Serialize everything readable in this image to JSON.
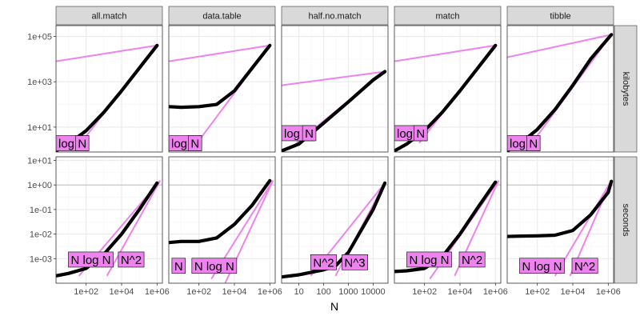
{
  "chart_data": {
    "type": "line",
    "facet_columns": [
      "all.match",
      "data.table",
      "half.no.match",
      "match",
      "tibble"
    ],
    "facet_rows": [
      "kilobytes",
      "seconds"
    ],
    "xlabel": "N",
    "x_scale": "log10",
    "y_scale": "log10",
    "x_ticks": {
      "all.match": {
        "values": [
          100,
          10000,
          1000000
        ],
        "labels": [
          "1e+02",
          "1e+04",
          "1e+06"
        ]
      },
      "data.table": {
        "values": [
          100,
          10000,
          1000000
        ],
        "labels": [
          "1e+02",
          "1e+04",
          "1e+06"
        ]
      },
      "half.no.match": {
        "values": [
          10,
          100,
          1000,
          10000
        ],
        "labels": [
          "10",
          "100",
          "1000",
          "10000"
        ]
      },
      "match": {
        "values": [
          100,
          10000,
          1000000
        ],
        "labels": [
          "1e+02",
          "1e+04",
          "1e+06"
        ]
      },
      "tibble": {
        "values": [
          100,
          10000,
          1000000
        ],
        "labels": [
          "1e+02",
          "1e+04",
          "1e+06"
        ]
      }
    },
    "x_ranges": {
      "all.match": [
        2,
        2000000
      ],
      "data.table": [
        2,
        2000000
      ],
      "half.no.match": [
        2,
        40000
      ],
      "match": [
        2,
        2000000
      ],
      "tibble": [
        2,
        2000000
      ]
    },
    "y_ticks": {
      "kilobytes": {
        "values": [
          10,
          1000,
          100000
        ],
        "labels": [
          "1e+01",
          "1e+03",
          "1e+05"
        ]
      },
      "seconds": {
        "values": [
          0.001,
          0.01,
          0.1,
          1,
          10
        ],
        "labels": [
          "1e-03",
          "1e-02",
          "1e-01",
          "1e+00",
          "1e+01"
        ]
      }
    },
    "y_ranges": {
      "kilobytes": [
        0.8,
        300000
      ],
      "seconds": [
        0.0001,
        14
      ]
    },
    "reference_line": {
      "row": "seconds",
      "y": 1
    },
    "panels": [
      {
        "col": "all.match",
        "row": "kilobytes",
        "measured": [
          [
            2,
            0.9
          ],
          [
            10,
            1.8
          ],
          [
            100,
            7
          ],
          [
            1000,
            45
          ],
          [
            10000,
            400
          ],
          [
            100000,
            4000
          ],
          [
            1000000,
            40000
          ]
        ],
        "ref_lines": [
          {
            "label": "log N",
            "points": [
              [
                2,
                8000
              ],
              [
                1000000,
                40000
              ]
            ]
          },
          {
            "label": "N",
            "points": [
              [
                50,
                2
              ],
              [
                1000000,
                40000
              ]
            ]
          }
        ],
        "labels": [
          {
            "text": "log N",
            "x": 2,
            "y": 0.9
          },
          {
            "text": "N",
            "x": 25,
            "y": 0.9
          }
        ]
      },
      {
        "col": "data.table",
        "row": "kilobytes",
        "measured": [
          [
            2,
            80
          ],
          [
            10,
            75
          ],
          [
            100,
            80
          ],
          [
            1000,
            100
          ],
          [
            10000,
            400
          ],
          [
            100000,
            4000
          ],
          [
            1000000,
            40000
          ]
        ],
        "ref_lines": [
          {
            "label": "log N",
            "points": [
              [
                2,
                8000
              ],
              [
                1000000,
                40000
              ]
            ]
          },
          {
            "label": "N",
            "points": [
              [
                80,
                2
              ],
              [
                1000000,
                40000
              ]
            ]
          }
        ],
        "labels": [
          {
            "text": "log N",
            "x": 2,
            "y": 0.9
          },
          {
            "text": "N",
            "x": 25,
            "y": 0.9
          }
        ]
      },
      {
        "col": "half.no.match",
        "row": "kilobytes",
        "measured": [
          [
            2,
            0.9
          ],
          [
            10,
            1.8
          ],
          [
            100,
            15
          ],
          [
            1000,
            130
          ],
          [
            10000,
            1200
          ],
          [
            30000,
            2800
          ]
        ],
        "ref_lines": [
          {
            "label": "log N",
            "points": [
              [
                2,
                700
              ],
              [
                30000,
                2800
              ]
            ]
          },
          {
            "label": "N",
            "points": [
              [
                8,
                2
              ],
              [
                30000,
                2800
              ]
            ]
          }
        ],
        "labels": [
          {
            "text": "log N",
            "x": 2,
            "y": 2.5
          },
          {
            "text": "N",
            "x": 14,
            "y": 2.5
          }
        ]
      },
      {
        "col": "match",
        "row": "kilobytes",
        "measured": [
          [
            2,
            0.9
          ],
          [
            10,
            1.8
          ],
          [
            100,
            7
          ],
          [
            1000,
            45
          ],
          [
            10000,
            400
          ],
          [
            100000,
            4000
          ],
          [
            1000000,
            40000
          ]
        ],
        "ref_lines": [
          {
            "label": "log N",
            "points": [
              [
                2,
                8000
              ],
              [
                1000000,
                40000
              ]
            ]
          },
          {
            "label": "N",
            "points": [
              [
                50,
                2
              ],
              [
                1000000,
                40000
              ]
            ]
          }
        ],
        "labels": [
          {
            "text": "log N",
            "x": 2,
            "y": 2.5
          },
          {
            "text": "N",
            "x": 25,
            "y": 2.5
          }
        ]
      },
      {
        "col": "tibble",
        "row": "kilobytes",
        "measured": [
          [
            2,
            0.9
          ],
          [
            10,
            1.8
          ],
          [
            100,
            8
          ],
          [
            1000,
            60
          ],
          [
            10000,
            700
          ],
          [
            100000,
            10000
          ],
          [
            1500000,
            120000
          ]
        ],
        "ref_lines": [
          {
            "label": "log N",
            "points": [
              [
                2,
                12000
              ],
              [
                1500000,
                120000
              ]
            ]
          },
          {
            "label": "N",
            "points": [
              [
                50,
                2
              ],
              [
                1500000,
                120000
              ]
            ]
          }
        ],
        "labels": [
          {
            "text": "log N",
            "x": 2,
            "y": 0.9
          },
          {
            "text": "N",
            "x": 25,
            "y": 0.9
          }
        ]
      },
      {
        "col": "all.match",
        "row": "seconds",
        "measured": [
          [
            2,
            0.0002
          ],
          [
            10,
            0.00025
          ],
          [
            100,
            0.0004
          ],
          [
            1000,
            0.0015
          ],
          [
            10000,
            0.01
          ],
          [
            100000,
            0.1
          ],
          [
            1000000,
            1.2
          ]
        ],
        "ref_lines": [
          {
            "label": "N log N",
            "points": [
              [
                40,
                0.0002
              ],
              [
                1500000,
                1.5
              ]
            ]
          },
          {
            "label": "N^2",
            "points": [
              [
                1500,
                0.0002
              ],
              [
                1500000,
                1.5
              ]
            ]
          }
        ],
        "labels": [
          {
            "text": "N log N",
            "x": 10,
            "y": 0.00045
          },
          {
            "text": "N^2",
            "x": 6500,
            "y": 0.00045
          }
        ]
      },
      {
        "col": "data.table",
        "row": "seconds",
        "measured": [
          [
            2,
            0.0045
          ],
          [
            10,
            0.005
          ],
          [
            100,
            0.005
          ],
          [
            1000,
            0.007
          ],
          [
            10000,
            0.025
          ],
          [
            100000,
            0.15
          ],
          [
            1000000,
            1.5
          ]
        ],
        "ref_lines": [
          {
            "label": "N log N",
            "points": [
              [
                500,
                0.00015
              ],
              [
                1500000,
                1.5
              ]
            ]
          },
          {
            "label": "N^2",
            "points": [
              [
                3000,
                0.0001
              ],
              [
                1500000,
                1.5
              ]
            ]
          }
        ],
        "labels": [
          {
            "text": "N",
            "x": 3,
            "y": 0.00025
          },
          {
            "text": "N log N",
            "x": 40,
            "y": 0.00025
          }
        ]
      },
      {
        "col": "half.no.match",
        "row": "seconds",
        "measured": [
          [
            2,
            0.00018
          ],
          [
            10,
            0.00022
          ],
          [
            100,
            0.00035
          ],
          [
            300,
            0.0005
          ],
          [
            1000,
            0.0018
          ],
          [
            10000,
            0.1
          ],
          [
            30000,
            1.2
          ]
        ],
        "ref_lines": [
          {
            "label": "N^2",
            "points": [
              [
                30,
                0.0002
              ],
              [
                30000,
                1.2
              ]
            ]
          },
          {
            "label": "N^3",
            "points": [
              [
                300,
                0.0002
              ],
              [
                30000,
                1.2
              ]
            ]
          }
        ],
        "labels": [
          {
            "text": "N^2",
            "x": 30,
            "y": 0.00035
          },
          {
            "text": "N^3",
            "x": 550,
            "y": 0.00035
          }
        ]
      },
      {
        "col": "match",
        "row": "seconds",
        "measured": [
          [
            2,
            0.0003
          ],
          [
            10,
            0.00032
          ],
          [
            100,
            0.0004
          ],
          [
            1000,
            0.0012
          ],
          [
            10000,
            0.01
          ],
          [
            100000,
            0.12
          ],
          [
            1000000,
            1.3
          ]
        ],
        "ref_lines": [
          {
            "label": "N log N",
            "points": [
              [
                200,
                0.00015
              ],
              [
                1500000,
                1.5
              ]
            ]
          },
          {
            "label": "N^2",
            "points": [
              [
                5000,
                0.0002
              ],
              [
                1500000,
                1.5
              ]
            ]
          }
        ],
        "labels": [
          {
            "text": "N log N",
            "x": 10,
            "y": 0.00045
          },
          {
            "text": "N^2",
            "x": 9000,
            "y": 0.00045
          }
        ]
      },
      {
        "col": "tibble",
        "row": "seconds",
        "measured": [
          [
            2,
            0.008
          ],
          [
            10,
            0.0082
          ],
          [
            100,
            0.0085
          ],
          [
            1000,
            0.009
          ],
          [
            10000,
            0.014
          ],
          [
            100000,
            0.06
          ],
          [
            1000000,
            0.5
          ],
          [
            1500000,
            1.4
          ]
        ],
        "ref_lines": [
          {
            "label": "N log N",
            "points": [
              [
                1000,
                0.0002
              ],
              [
                1500000,
                1.5
              ]
            ]
          },
          {
            "label": "N^2",
            "points": [
              [
                7000,
                0.0002
              ],
              [
                1500000,
                1.5
              ]
            ]
          }
        ],
        "labels": [
          {
            "text": "N log N",
            "x": 10,
            "y": 0.00025
          },
          {
            "text": "N^2",
            "x": 9000,
            "y": 0.00025
          }
        ]
      }
    ]
  },
  "colors": {
    "panel_background": "#ffffff",
    "panel_border": "#333333",
    "grid_major": "#ebebeb",
    "grid_minor": "#f5f5f5",
    "strip_fill": "#d9d9d9",
    "measured_line": "#000000",
    "reference_line": "#ee82ee",
    "label_fill": "#ee82ee",
    "spread_fill": "#7f7f7f",
    "hline": "#bfbfbf"
  }
}
